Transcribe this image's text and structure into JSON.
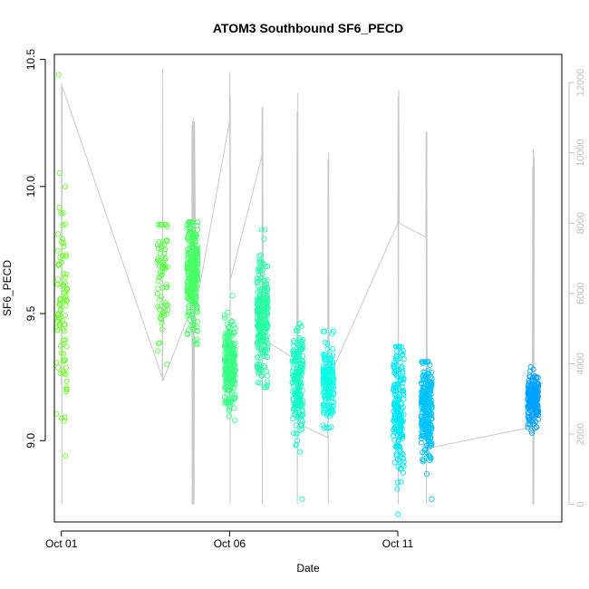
{
  "chart_data": {
    "type": "scatter",
    "title": "ATOM3 Southbound SF6_PECD",
    "xlabel": "Date",
    "ylabel": "SF6_PECD",
    "x_axis": {
      "type": "date",
      "range": [
        "2016-09-30T19:00",
        "2016-10-15T21:00"
      ],
      "ticks": [
        "Oct 01",
        "Oct 06",
        "Oct 11"
      ],
      "tick_dates": [
        "2016-10-01",
        "2016-10-06",
        "2016-10-11"
      ]
    },
    "y_axis_left": {
      "range": [
        8.68,
        10.52
      ],
      "ticks": [
        "9.0",
        "9.5",
        "10.0",
        "10.5"
      ],
      "tick_values": [
        9.0,
        9.5,
        10.0,
        10.5
      ]
    },
    "y_axis_right": {
      "range": [
        -500,
        12800
      ],
      "ticks": [
        "0",
        "2000",
        "4000",
        "6000",
        "8000",
        "10000",
        "12000"
      ],
      "tick_values": [
        0,
        2000,
        4000,
        6000,
        8000,
        10000,
        12000
      ],
      "color": "#bdbdbd"
    },
    "grid": false,
    "series_colors": {
      "altitude_line": "#c8c8c8",
      "marker_start": "#66ff22",
      "marker_end": "#2aa0ff"
    },
    "altitude_path": [
      [
        "2016-10-01T00:00",
        3400
      ],
      [
        "2016-10-01T00:10",
        12000
      ],
      [
        "2016-10-01T00:20",
        0
      ],
      [
        "2016-10-01T00:30",
        11900
      ],
      [
        "2016-10-04T00:00",
        3600
      ],
      [
        "2016-10-04T00:10",
        12400
      ],
      [
        "2016-10-04T00:20",
        3500
      ],
      [
        "2016-10-04T21:00",
        5600
      ],
      [
        "2016-10-04T21:10",
        10800
      ],
      [
        "2016-10-04T21:20",
        0
      ],
      [
        "2016-10-04T21:40",
        10900
      ],
      [
        "2016-10-04T22:00",
        0
      ],
      [
        "2016-10-04T22:20",
        11000
      ],
      [
        "2016-10-04T22:40",
        0
      ],
      [
        "2016-10-04T23:00",
        10900
      ],
      [
        "2016-10-05T00:00",
        5600
      ],
      [
        "2016-10-06T00:00",
        10900
      ],
      [
        "2016-10-06T00:10",
        12300
      ],
      [
        "2016-10-06T00:20",
        0
      ],
      [
        "2016-10-06T00:30",
        11600
      ],
      [
        "2016-10-06T00:40",
        6400
      ],
      [
        "2016-10-06T23:00",
        9900
      ],
      [
        "2016-10-06T23:10",
        11300
      ],
      [
        "2016-10-06T23:20",
        0
      ],
      [
        "2016-10-06T23:40",
        11300
      ],
      [
        "2016-10-07T00:00",
        4700
      ],
      [
        "2016-10-08T00:00",
        4100
      ],
      [
        "2016-10-08T00:10",
        11200
      ],
      [
        "2016-10-08T00:20",
        0
      ],
      [
        "2016-10-08T00:40",
        11700
      ],
      [
        "2016-10-08T01:00",
        2300
      ],
      [
        "2016-10-08T22:00",
        1900
      ],
      [
        "2016-10-08T22:10",
        9800
      ],
      [
        "2016-10-08T22:20",
        0
      ],
      [
        "2016-10-08T22:40",
        10000
      ],
      [
        "2016-10-08T23:00",
        3600
      ],
      [
        "2016-10-11T00:00",
        8000
      ],
      [
        "2016-10-11T00:10",
        11600
      ],
      [
        "2016-10-11T00:20",
        0
      ],
      [
        "2016-10-11T00:40",
        11800
      ],
      [
        "2016-10-11T01:00",
        8000
      ],
      [
        "2016-10-11T20:00",
        7600
      ],
      [
        "2016-10-11T20:10",
        10600
      ],
      [
        "2016-10-11T20:20",
        0
      ],
      [
        "2016-10-11T20:40",
        10600
      ],
      [
        "2016-10-11T21:00",
        1400
      ],
      [
        "2016-10-11T22:00",
        1600
      ],
      [
        "2016-10-15T00:00",
        2200
      ],
      [
        "2016-10-15T00:10",
        9600
      ],
      [
        "2016-10-15T00:20",
        0
      ],
      [
        "2016-10-15T00:40",
        10100
      ],
      [
        "2016-10-15T01:00",
        0
      ],
      [
        "2016-10-15T01:20",
        9900
      ]
    ],
    "sf6_groups": [
      {
        "date": "2016-10-01T00:10",
        "count": 90,
        "mean": 9.52,
        "sd": 0.22,
        "min": 8.94,
        "max": 10.44
      },
      {
        "date": "2016-10-04T00:10",
        "count": 70,
        "mean": 9.66,
        "sd": 0.13,
        "min": 9.3,
        "max": 9.85
      },
      {
        "date": "2016-10-04T21:30",
        "count": 260,
        "mean": 9.65,
        "sd": 0.11,
        "min": 9.38,
        "max": 9.86
      },
      {
        "date": "2016-10-06T00:20",
        "count": 220,
        "mean": 9.3,
        "sd": 0.08,
        "min": 9.08,
        "max": 9.57
      },
      {
        "date": "2016-10-06T23:30",
        "count": 240,
        "mean": 9.48,
        "sd": 0.12,
        "min": 9.21,
        "max": 9.83
      },
      {
        "date": "2016-10-08T00:30",
        "count": 200,
        "mean": 9.24,
        "sd": 0.1,
        "min": 8.77,
        "max": 9.46
      },
      {
        "date": "2016-10-08T22:30",
        "count": 160,
        "mean": 9.22,
        "sd": 0.08,
        "min": 9.05,
        "max": 9.43
      },
      {
        "date": "2016-10-11T00:30",
        "count": 200,
        "mean": 9.12,
        "sd": 0.13,
        "min": 8.71,
        "max": 9.37
      },
      {
        "date": "2016-10-11T20:30",
        "count": 260,
        "mean": 9.13,
        "sd": 0.1,
        "min": 8.77,
        "max": 9.31
      },
      {
        "date": "2016-10-15T00:30",
        "count": 200,
        "mean": 9.16,
        "sd": 0.05,
        "min": 9.03,
        "max": 9.29
      }
    ]
  }
}
